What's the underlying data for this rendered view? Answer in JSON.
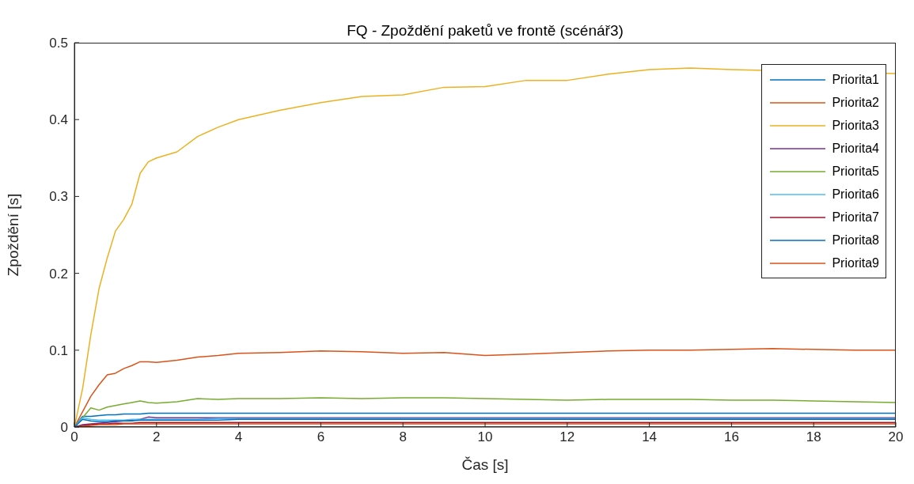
{
  "chart_data": {
    "type": "line",
    "title": "FQ - Zpoždění paketů ve frontě (scénář3)",
    "xlabel": "Čas [s]",
    "ylabel": "Zpoždění [s]",
    "x": [
      0,
      0.2,
      0.4,
      0.6,
      0.8,
      1,
      1.2,
      1.4,
      1.6,
      1.8,
      2,
      2.5,
      3,
      3.5,
      4,
      5,
      6,
      7,
      8,
      9,
      10,
      11,
      12,
      13,
      14,
      15,
      16,
      17,
      18,
      19,
      20
    ],
    "series": [
      {
        "name": "Priorita1",
        "color": "#0072bd",
        "values": [
          0,
          0.014,
          0.014,
          0.015,
          0.016,
          0.016,
          0.017,
          0.017,
          0.017,
          0.018,
          0.018,
          0.018,
          0.018,
          0.018,
          0.018,
          0.018,
          0.018,
          0.018,
          0.018,
          0.018,
          0.018,
          0.018,
          0.018,
          0.018,
          0.018,
          0.018,
          0.018,
          0.018,
          0.018,
          0.018,
          0.018
        ]
      },
      {
        "name": "Priorita2",
        "color": "#d95319",
        "values": [
          0,
          0.02,
          0.04,
          0.055,
          0.068,
          0.07,
          0.076,
          0.08,
          0.085,
          0.085,
          0.084,
          0.087,
          0.091,
          0.093,
          0.096,
          0.097,
          0.099,
          0.098,
          0.096,
          0.097,
          0.093,
          0.095,
          0.097,
          0.099,
          0.1,
          0.1,
          0.101,
          0.102,
          0.101,
          0.1,
          0.1
        ]
      },
      {
        "name": "Priorita3",
        "color": "#edb120",
        "values": [
          0,
          0.05,
          0.12,
          0.18,
          0.22,
          0.255,
          0.27,
          0.29,
          0.33,
          0.345,
          0.35,
          0.358,
          0.378,
          0.39,
          0.4,
          0.412,
          0.422,
          0.43,
          0.432,
          0.442,
          0.443,
          0.451,
          0.451,
          0.459,
          0.465,
          0.467,
          0.465,
          null,
          null,
          null,
          0.46
        ]
      },
      {
        "name": "Priorita4",
        "color": "#7e2f8e",
        "values": [
          0,
          0.003,
          0.004,
          0.005,
          0.006,
          0.007,
          0.008,
          0.009,
          0.01,
          0.013,
          0.012,
          0.012,
          0.012,
          0.012,
          0.012,
          0.012,
          0.012,
          0.012,
          0.012,
          0.012,
          0.012,
          0.012,
          0.012,
          0.012,
          0.012,
          0.012,
          0.012,
          0.012,
          0.012,
          0.012,
          0.012
        ]
      },
      {
        "name": "Priorita5",
        "color": "#77ac30",
        "values": [
          0,
          0.012,
          0.025,
          0.022,
          0.026,
          0.028,
          0.03,
          0.032,
          0.034,
          0.032,
          0.031,
          0.033,
          0.037,
          0.036,
          0.037,
          0.037,
          0.038,
          0.037,
          0.038,
          0.038,
          0.037,
          0.036,
          0.035,
          0.036,
          0.036,
          0.036,
          0.035,
          0.035,
          0.034,
          0.033,
          0.032
        ]
      },
      {
        "name": "Priorita6",
        "color": "#4dbeee",
        "values": [
          0,
          0.012,
          0.01,
          0.009,
          0.009,
          0.009,
          0.009,
          0.01,
          0.01,
          0.01,
          0.01,
          0.01,
          0.01,
          0.011,
          0.011,
          0.011,
          0.011,
          0.011,
          0.011,
          0.011,
          0.011,
          0.011,
          0.011,
          0.011,
          0.011,
          0.011,
          0.011,
          0.011,
          0.011,
          0.011,
          0.011
        ]
      },
      {
        "name": "Priorita7",
        "color": "#a2142f",
        "values": [
          0,
          0.002,
          0.003,
          0.004,
          0.004,
          0.005,
          0.005,
          0.005,
          0.006,
          0.006,
          0.006,
          0.006,
          0.006,
          0.006,
          0.006,
          0.006,
          0.006,
          0.006,
          0.006,
          0.006,
          0.006,
          0.006,
          0.006,
          0.006,
          0.006,
          0.006,
          0.006,
          0.006,
          0.006,
          0.006,
          0.006
        ]
      },
      {
        "name": "Priorita8",
        "color": "#0072bd",
        "values": [
          0,
          0.01,
          0.008,
          0.007,
          0.007,
          0.008,
          0.008,
          0.008,
          0.009,
          0.009,
          0.009,
          0.009,
          0.009,
          0.009,
          0.01,
          0.01,
          0.01,
          0.01,
          0.01,
          0.01,
          0.01,
          0.01,
          0.01,
          0.01,
          0.01,
          0.01,
          0.01,
          0.01,
          0.01,
          0.01,
          0.01
        ]
      },
      {
        "name": "Priorita9",
        "color": "#d95319",
        "values": [
          0,
          0.001,
          0.002,
          0.003,
          0.003,
          0.003,
          0.004,
          0.004,
          0.004,
          0.004,
          0.004,
          0.004,
          0.004,
          0.004,
          0.004,
          0.004,
          0.004,
          0.004,
          0.004,
          0.004,
          0.004,
          0.004,
          0.004,
          0.004,
          0.004,
          0.004,
          0.004,
          0.004,
          0.004,
          0.004,
          0.004
        ]
      }
    ],
    "xlim": [
      0,
      20
    ],
    "xticks": [
      0,
      2,
      4,
      6,
      8,
      10,
      12,
      14,
      16,
      18,
      20
    ],
    "ylim": [
      0,
      0.5
    ],
    "yticks": [
      0,
      0.1,
      0.2,
      0.3,
      0.4,
      0.5
    ],
    "grid": false,
    "legend": "top right",
    "marker": "none",
    "line_style": "solid"
  }
}
